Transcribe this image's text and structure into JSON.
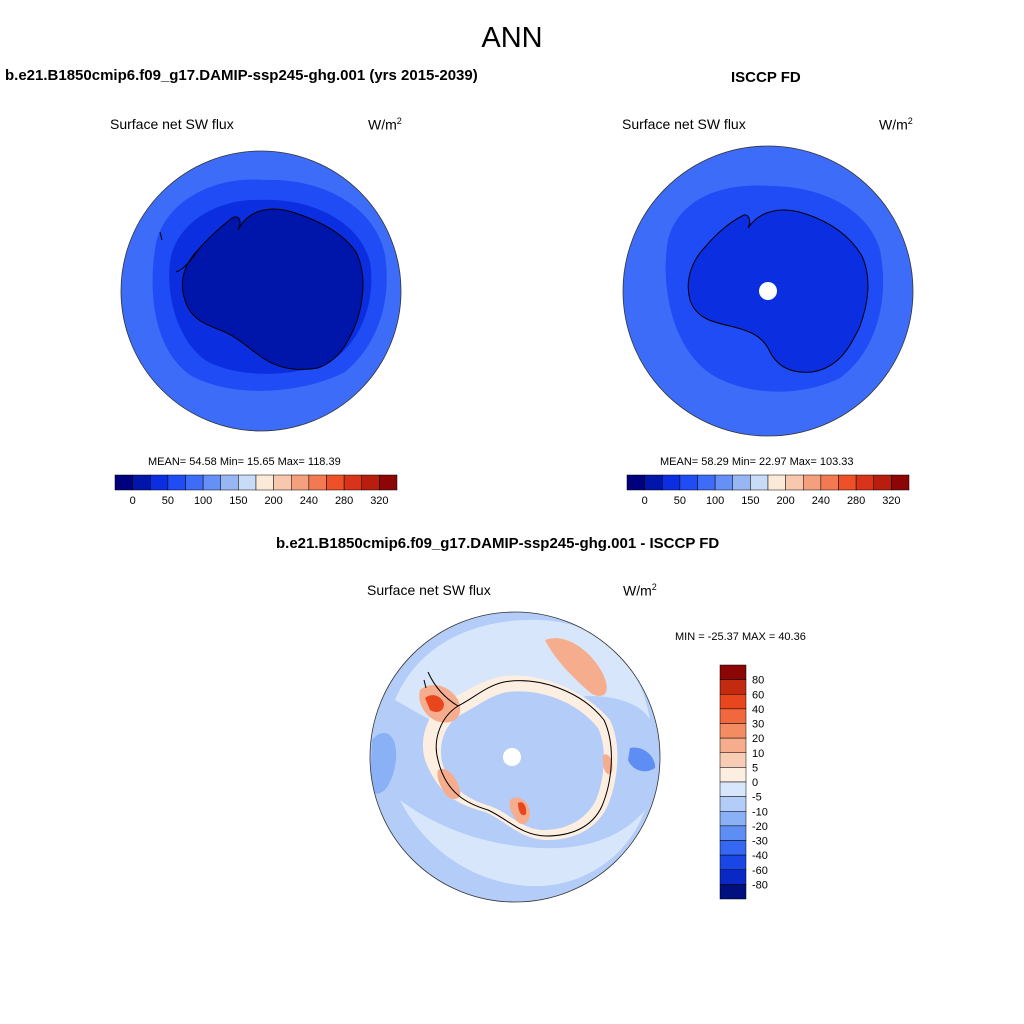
{
  "page": {
    "title": "ANN"
  },
  "panels": {
    "model": {
      "title": "b.e21.B1850cmip6.f09_g17.DAMIP-ssp245-ghg.001 (yrs 2015-2039)",
      "variable": "Surface net SW flux",
      "units_base": "W/m",
      "units_exp": "2",
      "stats": "MEAN=  54.58  Min=  15.65  Max= 118.39"
    },
    "obs": {
      "title": "ISCCP FD",
      "variable": "Surface net SW flux",
      "units_base": "W/m",
      "units_exp": "2",
      "stats": "MEAN=  58.29  Min=  22.97  Max= 103.33"
    },
    "diff": {
      "title": "b.e21.B1850cmip6.f09_g17.DAMIP-ssp245-ghg.001 - ISCCP FD",
      "variable": "Surface net SW flux",
      "units_base": "W/m",
      "units_exp": "2",
      "stats": "MIN = -25.37 MAX =  40.36"
    }
  },
  "colorbars": {
    "abs": {
      "colors": [
        "#00007f",
        "#0015aa",
        "#0a2ee0",
        "#1f4cf5",
        "#3d6cf8",
        "#6690f5",
        "#98b6f3",
        "#c9dcf7",
        "#fcead9",
        "#f7c8ad",
        "#f4a07c",
        "#f27a52",
        "#ee5128",
        "#d8341a",
        "#b81d0e",
        "#8c0606"
      ],
      "tick_labels": [
        "0",
        "50",
        "100",
        "150",
        "200",
        "240",
        "280",
        "320"
      ]
    },
    "diff": {
      "colors": [
        "#8c0606",
        "#c22b10",
        "#e8471d",
        "#f2683e",
        "#f48c63",
        "#f6ad8d",
        "#f9ccb5",
        "#fdeee2",
        "#d7e6fa",
        "#b3cdf8",
        "#8ab0f6",
        "#5e8ef3",
        "#3667f2",
        "#1a46e6",
        "#0a28c4",
        "#00117f"
      ],
      "tick_labels": [
        "80",
        "60",
        "40",
        "30",
        "20",
        "10",
        "5",
        "0",
        "-5",
        "-10",
        "-20",
        "-30",
        "-40",
        "-60",
        "-80"
      ]
    }
  },
  "map_colors": {
    "ocean_outer": "#3d6cf8",
    "ocean_mid": "#1f4cf5",
    "ice_shelf": "#0a2ee0",
    "continent": "#0015aa",
    "obs_continent": "#0a2ee0",
    "diff_base": "#b3cdf8",
    "diff_light": "#d7e6fa",
    "diff_pos_light": "#fdeee2",
    "diff_pos": "#f6ad8d",
    "diff_pos_strong": "#e8471d",
    "diff_neg": "#8ab0f6",
    "diff_neg_strong": "#5e8ef3",
    "missing": "#ffffff"
  }
}
